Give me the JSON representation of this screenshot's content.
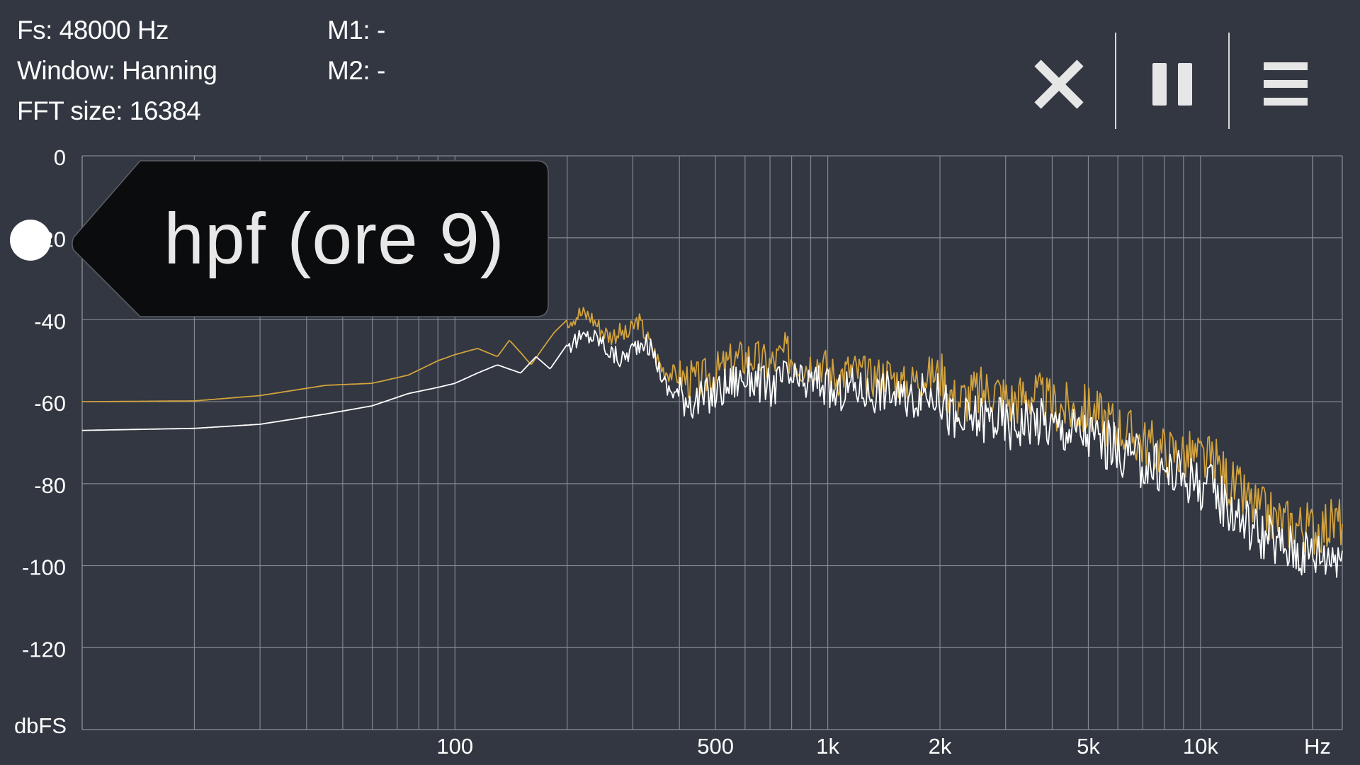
{
  "info": {
    "fs": "Fs: 48000 Hz",
    "window": "Window: Hanning",
    "fft_size": "FFT size: 16384",
    "m1": "M1: -",
    "m2": "M2: -"
  },
  "toolbar": {
    "close_icon": "close-icon",
    "pause_icon": "pause-icon",
    "menu_icon": "menu-icon"
  },
  "tooltip": {
    "label": "hpf (ore 9)"
  },
  "colors": {
    "background": "#323741",
    "grid": "#8a8f98",
    "trace_gold": "#d2a23e",
    "trace_white": "#ffffff",
    "tooltip_bg": "#0b0c0e"
  },
  "chart_data": {
    "type": "line",
    "title": "",
    "xlabel": "Hz",
    "ylabel": "dbFS",
    "x_scale": "log",
    "xlim": [
      10,
      24000
    ],
    "ylim": [
      -140,
      0
    ],
    "grid": true,
    "x_ticks": [
      {
        "value": 100,
        "label": "100"
      },
      {
        "value": 500,
        "label": "500"
      },
      {
        "value": 1000,
        "label": "1k"
      },
      {
        "value": 2000,
        "label": "2k"
      },
      {
        "value": 5000,
        "label": "5k"
      },
      {
        "value": 10000,
        "label": "10k"
      }
    ],
    "y_ticks": [
      0,
      -20,
      -40,
      -60,
      -80,
      -100,
      -120
    ],
    "series": [
      {
        "color": "#d2a23e",
        "points": [
          [
            10,
            -60
          ],
          [
            20,
            -59.8
          ],
          [
            30,
            -58.5
          ],
          [
            45,
            -56
          ],
          [
            60,
            -55.5
          ],
          [
            75,
            -53.5
          ],
          [
            90,
            -50
          ],
          [
            100,
            -48.5
          ],
          [
            115,
            -47
          ],
          [
            130,
            -49
          ],
          [
            140,
            -45
          ],
          [
            150,
            -48
          ],
          [
            160,
            -51
          ],
          [
            175,
            -46
          ],
          [
            185,
            -43
          ],
          [
            200,
            -40
          ],
          [
            215,
            -38.5
          ],
          [
            230,
            -39
          ],
          [
            245,
            -42
          ],
          [
            260,
            -44
          ],
          [
            275,
            -43
          ],
          [
            290,
            -44
          ],
          [
            310,
            -40
          ],
          [
            330,
            -45
          ],
          [
            360,
            -52
          ],
          [
            400,
            -54
          ],
          [
            450,
            -55
          ],
          [
            500,
            -53
          ],
          [
            560,
            -50
          ],
          [
            620,
            -49
          ],
          [
            700,
            -51
          ],
          [
            770,
            -48
          ],
          [
            850,
            -51
          ],
          [
            950,
            -50
          ],
          [
            1050,
            -54
          ],
          [
            1150,
            -52
          ],
          [
            1300,
            -54
          ],
          [
            1450,
            -53
          ],
          [
            1600,
            -56
          ],
          [
            1800,
            -54
          ],
          [
            2000,
            -53
          ],
          [
            2200,
            -60
          ],
          [
            2500,
            -58
          ],
          [
            2800,
            -57
          ],
          [
            3100,
            -60
          ],
          [
            3500,
            -58
          ],
          [
            4000,
            -61
          ],
          [
            4500,
            -62
          ],
          [
            5000,
            -62
          ],
          [
            5500,
            -64
          ],
          [
            6000,
            -66
          ],
          [
            7000,
            -70
          ],
          [
            8000,
            -72
          ],
          [
            9000,
            -73
          ],
          [
            10000,
            -74
          ],
          [
            11000,
            -75
          ],
          [
            12000,
            -80
          ],
          [
            14000,
            -86
          ],
          [
            16000,
            -89
          ],
          [
            18000,
            -90
          ],
          [
            20000,
            -91
          ],
          [
            22000,
            -90
          ],
          [
            24000,
            -89
          ]
        ]
      },
      {
        "color": "#ffffff",
        "points": [
          [
            10,
            -67
          ],
          [
            20,
            -66.5
          ],
          [
            30,
            -65.5
          ],
          [
            45,
            -63
          ],
          [
            60,
            -61
          ],
          [
            75,
            -58
          ],
          [
            90,
            -56.5
          ],
          [
            100,
            -55.5
          ],
          [
            115,
            -53
          ],
          [
            130,
            -51
          ],
          [
            150,
            -53
          ],
          [
            165,
            -49
          ],
          [
            180,
            -52
          ],
          [
            200,
            -46
          ],
          [
            215,
            -45
          ],
          [
            230,
            -44
          ],
          [
            245,
            -45
          ],
          [
            260,
            -48
          ],
          [
            280,
            -50
          ],
          [
            300,
            -47
          ],
          [
            320,
            -45
          ],
          [
            340,
            -48
          ],
          [
            370,
            -57
          ],
          [
            400,
            -58
          ],
          [
            450,
            -60
          ],
          [
            500,
            -58
          ],
          [
            560,
            -55
          ],
          [
            620,
            -54
          ],
          [
            700,
            -57
          ],
          [
            770,
            -54
          ],
          [
            850,
            -56
          ],
          [
            950,
            -55
          ],
          [
            1050,
            -59
          ],
          [
            1150,
            -56
          ],
          [
            1300,
            -58
          ],
          [
            1450,
            -57
          ],
          [
            1600,
            -60
          ],
          [
            1800,
            -58
          ],
          [
            2000,
            -58
          ],
          [
            2200,
            -66
          ],
          [
            2500,
            -64
          ],
          [
            2800,
            -64
          ],
          [
            3100,
            -66
          ],
          [
            3500,
            -64
          ],
          [
            4000,
            -66
          ],
          [
            4500,
            -67
          ],
          [
            5000,
            -68
          ],
          [
            5500,
            -70
          ],
          [
            6000,
            -72
          ],
          [
            7000,
            -75
          ],
          [
            8000,
            -77
          ],
          [
            9000,
            -78
          ],
          [
            10000,
            -80
          ],
          [
            11000,
            -82
          ],
          [
            12000,
            -86
          ],
          [
            14000,
            -91
          ],
          [
            16000,
            -95
          ],
          [
            18000,
            -96
          ],
          [
            20000,
            -97
          ],
          [
            22000,
            -97
          ],
          [
            24000,
            -96
          ]
        ]
      }
    ]
  }
}
